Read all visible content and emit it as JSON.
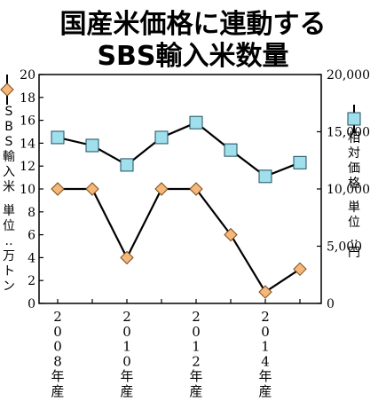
{
  "title": {
    "line1": "国産米価格に連動する",
    "line2": "SBS輸入米数量"
  },
  "legend": {
    "left_label": "SBS輸入米",
    "left_unit": "単位:万トン",
    "right_label": "相対価格",
    "right_unit": "単位:円"
  },
  "colors": {
    "sbs_marker": "#f5b87a",
    "sbs_marker_stroke": "#7a4a1a",
    "price_marker": "#9fe0ec",
    "price_marker_stroke": "#1e4e5c",
    "line": "#000000"
  },
  "chart_data": {
    "type": "line",
    "x": [
      "2008",
      "2009",
      "2010",
      "2011",
      "2012",
      "2013",
      "2014",
      "2015"
    ],
    "x_tick_labels": [
      {
        "x": "2008",
        "label": "2008年産"
      },
      {
        "x": "2010",
        "label": "2010年産"
      },
      {
        "x": "2012",
        "label": "2012年産"
      },
      {
        "x": "2014",
        "label": "2014年産"
      }
    ],
    "y_left": {
      "label": "SBS輸入米 単位:万トン",
      "ylim": [
        0,
        20
      ],
      "ticks": [
        0,
        2,
        4,
        6,
        8,
        10,
        12,
        14,
        16,
        18,
        20
      ]
    },
    "y_right": {
      "label": "相対価格 単位:円",
      "ylim": [
        0,
        20000
      ],
      "ticks": [
        "0",
        "5,000",
        "10,000",
        "15,000",
        "20,000"
      ]
    },
    "series": [
      {
        "name": "SBS輸入米",
        "axis": "left",
        "marker": "diamond",
        "values": [
          10,
          10,
          4,
          10,
          10,
          6,
          1,
          3
        ]
      },
      {
        "name": "相対価格",
        "axis": "right",
        "marker": "square",
        "values": [
          14500,
          13800,
          12100,
          14500,
          15800,
          13400,
          11100,
          12300
        ]
      }
    ],
    "grid": false
  }
}
